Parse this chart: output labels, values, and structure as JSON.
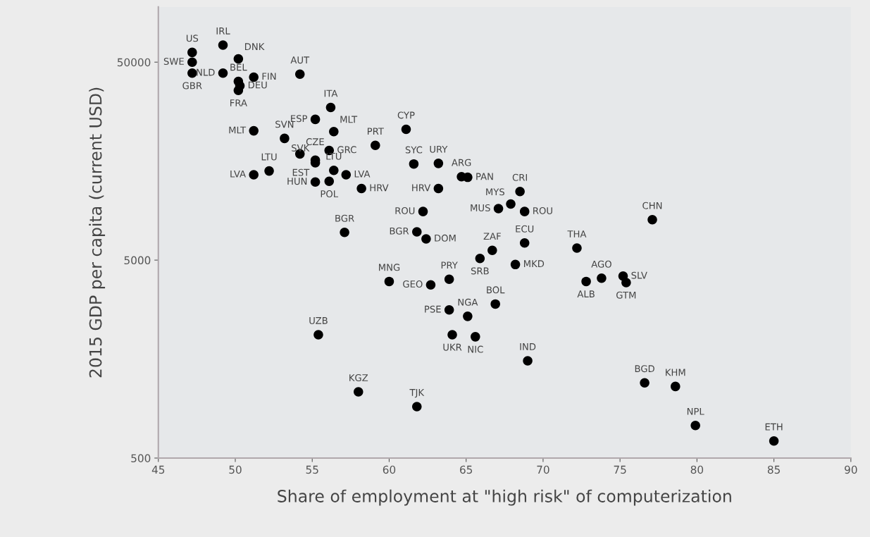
{
  "chart_data": {
    "type": "scatter",
    "xlabel": "Share of employment at \"high risk\" of computerization",
    "ylabel": "2015 GDP per capita (current USD)",
    "x": [
      47.2,
      47.2,
      47.2,
      49.2,
      49.2,
      50.2,
      50.2,
      50.2,
      50.3,
      51.2,
      54.2,
      56.2,
      55.2,
      56.4,
      51.2,
      53.2,
      54.2,
      55.2,
      55.2,
      56.1,
      59.1,
      51.2,
      52.2,
      56.4,
      57.2,
      55.2,
      56.1,
      58.2,
      61.1,
      61.6,
      63.2,
      64.7,
      65.1,
      68.5,
      67.9,
      67.1,
      68.8,
      63.2,
      62.2,
      57.1,
      61.8,
      62.4,
      66.7,
      65.9,
      68.8,
      68.2,
      60.0,
      62.7,
      63.9,
      63.9,
      65.1,
      66.9,
      55.4,
      64.1,
      65.6,
      69.0,
      58.0,
      61.8,
      77.1,
      72.2,
      72.8,
      73.8,
      75.2,
      75.4,
      76.6,
      78.6,
      79.9,
      85.0
    ],
    "series": [
      {
        "color": "#000000",
        "values": [
          56000,
          50000,
          44000,
          61000,
          44000,
          52000,
          40000,
          36000,
          38000,
          42000,
          43500,
          29500,
          25700,
          22300,
          22500,
          20600,
          17200,
          16000,
          15500,
          17900,
          19000,
          13500,
          14100,
          14200,
          13500,
          12400,
          12500,
          11500,
          22900,
          15300,
          15400,
          13200,
          13100,
          11100,
          9600,
          9100,
          8800,
          11500,
          8800,
          6900,
          6950,
          6400,
          5600,
          5100,
          6100,
          4750,
          3900,
          3750,
          4000,
          2800,
          2600,
          3000,
          2100,
          2100,
          2050,
          1550,
          1080,
          910,
          8000,
          5750,
          3900,
          4050,
          4150,
          3850,
          1200,
          1150,
          730,
          610
        ]
      }
    ],
    "annotations": [
      {
        "text": "US",
        "x": 47.2,
        "y": 56000
      },
      {
        "text": "SWE",
        "x": 47.2,
        "y": 50000
      },
      {
        "text": "GBR",
        "x": 47.2,
        "y": 44000
      },
      {
        "text": "IRL",
        "x": 49.2,
        "y": 61000
      },
      {
        "text": "NLD",
        "x": 49.2,
        "y": 44000
      },
      {
        "text": "DNK",
        "x": 50.2,
        "y": 52000
      },
      {
        "text": "BEL",
        "x": 50.2,
        "y": 40000
      },
      {
        "text": "FRA",
        "x": 50.2,
        "y": 36000
      },
      {
        "text": "DEU",
        "x": 50.3,
        "y": 38000
      },
      {
        "text": "FIN",
        "x": 51.2,
        "y": 42000
      },
      {
        "text": "AUT",
        "x": 54.2,
        "y": 43500
      },
      {
        "text": "ITA",
        "x": 56.2,
        "y": 29500
      },
      {
        "text": "ESP",
        "x": 55.2,
        "y": 25700
      },
      {
        "text": "MLT",
        "x": 56.4,
        "y": 22300
      },
      {
        "text": "MLT",
        "x": 51.2,
        "y": 22500
      },
      {
        "text": "SVN",
        "x": 53.2,
        "y": 20600
      },
      {
        "text": "CZE",
        "x": 54.2,
        "y": 17200
      },
      {
        "text": "SVK",
        "x": 55.2,
        "y": 16000
      },
      {
        "text": "EST",
        "x": 55.2,
        "y": 15500
      },
      {
        "text": "GRC",
        "x": 56.1,
        "y": 17900
      },
      {
        "text": "PRT",
        "x": 59.1,
        "y": 19000
      },
      {
        "text": "LVA",
        "x": 51.2,
        "y": 13500
      },
      {
        "text": "LTU",
        "x": 52.2,
        "y": 14100
      },
      {
        "text": "LTU",
        "x": 56.4,
        "y": 14200
      },
      {
        "text": "LVA",
        "x": 57.2,
        "y": 13500
      },
      {
        "text": "HUN",
        "x": 55.2,
        "y": 12400
      },
      {
        "text": "POL",
        "x": 56.1,
        "y": 12500
      },
      {
        "text": "HRV",
        "x": 58.2,
        "y": 11500
      },
      {
        "text": "CYP",
        "x": 61.1,
        "y": 22900
      },
      {
        "text": "SYC",
        "x": 61.6,
        "y": 15300
      },
      {
        "text": "URY",
        "x": 63.2,
        "y": 15400
      },
      {
        "text": "ARG",
        "x": 64.7,
        "y": 13200
      },
      {
        "text": "PAN",
        "x": 65.1,
        "y": 13100
      },
      {
        "text": "CRI",
        "x": 68.5,
        "y": 11100
      },
      {
        "text": "MYS",
        "x": 67.9,
        "y": 9600
      },
      {
        "text": "MUS",
        "x": 67.1,
        "y": 9100
      },
      {
        "text": "ROU",
        "x": 68.8,
        "y": 8800
      },
      {
        "text": "HRV",
        "x": 63.2,
        "y": 11500
      },
      {
        "text": "ROU",
        "x": 62.2,
        "y": 8800
      },
      {
        "text": "BGR",
        "x": 57.1,
        "y": 6900
      },
      {
        "text": "BGR",
        "x": 61.8,
        "y": 6950
      },
      {
        "text": "DOM",
        "x": 62.4,
        "y": 6400
      },
      {
        "text": "ZAF",
        "x": 66.7,
        "y": 5600
      },
      {
        "text": "SRB",
        "x": 65.9,
        "y": 5100
      },
      {
        "text": "ECU",
        "x": 68.8,
        "y": 6100
      },
      {
        "text": "MKD",
        "x": 68.2,
        "y": 4750
      },
      {
        "text": "MNG",
        "x": 60.0,
        "y": 3900
      },
      {
        "text": "GEO",
        "x": 62.7,
        "y": 3750
      },
      {
        "text": "PRY",
        "x": 63.9,
        "y": 4000
      },
      {
        "text": "PSE",
        "x": 63.9,
        "y": 2800
      },
      {
        "text": "NGA",
        "x": 65.1,
        "y": 2600
      },
      {
        "text": "BOL",
        "x": 66.9,
        "y": 3000
      },
      {
        "text": "UZB",
        "x": 55.4,
        "y": 2100
      },
      {
        "text": "UKR",
        "x": 64.1,
        "y": 2100
      },
      {
        "text": "NIC",
        "x": 65.6,
        "y": 2050
      },
      {
        "text": "IND",
        "x": 69.0,
        "y": 1550
      },
      {
        "text": "KGZ",
        "x": 58.0,
        "y": 1080
      },
      {
        "text": "TJK",
        "x": 61.8,
        "y": 910
      },
      {
        "text": "CHN",
        "x": 77.1,
        "y": 8000
      },
      {
        "text": "THA",
        "x": 72.2,
        "y": 5750
      },
      {
        "text": "ALB",
        "x": 72.8,
        "y": 3900
      },
      {
        "text": "AGO",
        "x": 73.8,
        "y": 4050
      },
      {
        "text": "SLV",
        "x": 75.2,
        "y": 4150
      },
      {
        "text": "GTM",
        "x": 75.4,
        "y": 3850
      },
      {
        "text": "BGD",
        "x": 76.6,
        "y": 1200
      },
      {
        "text": "KHM",
        "x": 78.6,
        "y": 1150
      },
      {
        "text": "NPL",
        "x": 79.9,
        "y": 730
      },
      {
        "text": "ETH",
        "x": 85.0,
        "y": 610
      }
    ],
    "xlim": [
      45,
      90
    ],
    "xticks": [
      45,
      50,
      55,
      60,
      65,
      70,
      75,
      80,
      85,
      90
    ],
    "ylim": [
      500,
      95000
    ],
    "yticks": [
      500,
      5000,
      50000
    ],
    "log": "y",
    "marker": "circle",
    "grid": false,
    "legend": false
  }
}
